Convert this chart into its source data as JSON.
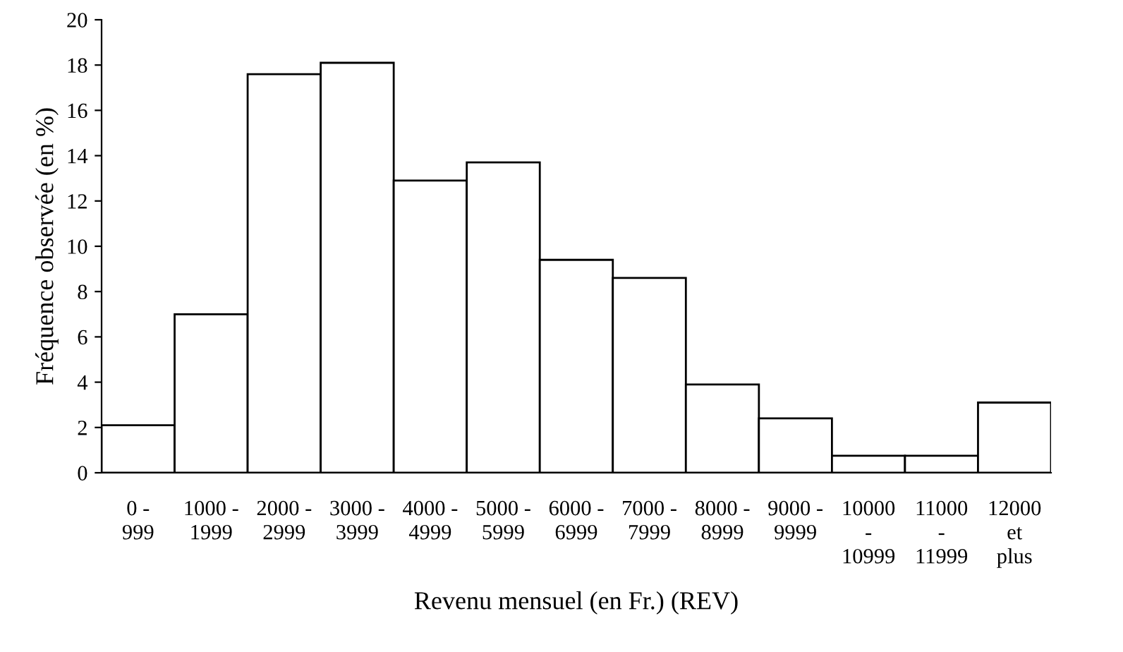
{
  "chart_data": {
    "type": "bar",
    "xlabel": "Revenu mensuel (en Fr.) (REV)",
    "ylabel": "Fréquence observée (en %)",
    "categories": [
      "0 -\n999",
      "1000 -\n1999",
      "2000 -\n2999",
      "3000 -\n3999",
      "4000 -\n4999",
      "5000 -\n5999",
      "6000 -\n6999",
      "7000 -\n7999",
      "8000 -\n8999",
      "9000 -\n9999",
      "10000\n-\n10999",
      "11000\n-\n11999",
      "12000\net\nplus"
    ],
    "values": [
      2.1,
      7.0,
      17.6,
      18.1,
      12.9,
      13.7,
      9.4,
      8.6,
      3.9,
      2.4,
      0.75,
      0.75,
      3.1
    ],
    "color": "#ffffff",
    "ylim": [
      0,
      20
    ],
    "yticks": [
      0,
      2,
      4,
      6,
      8,
      10,
      12,
      14,
      16,
      18,
      20
    ],
    "grid": false,
    "legend": false
  }
}
